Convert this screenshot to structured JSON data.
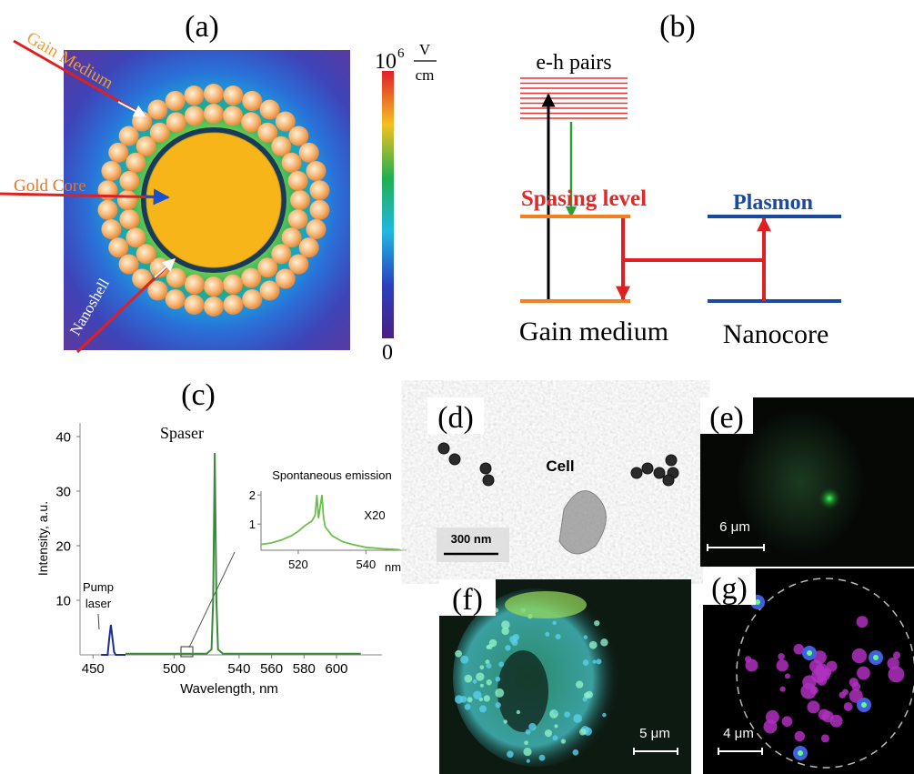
{
  "panel_a": {
    "label": "(a)",
    "gain_medium": "Gain Medium",
    "gold_core": "Gold Core",
    "nanoshell": "Nanoshell",
    "colorbar_top": {
      "base": "10",
      "exponent": "6",
      "unit_num": "V",
      "unit_den": "cm"
    },
    "colorbar_bottom": "0"
  },
  "panel_b": {
    "label": "(b)",
    "eh_pairs": "e-h pairs",
    "spasing_level": "Spasing level",
    "plasmon": "Plasmon",
    "gain_medium": "Gain medium",
    "nanocore": "Nanocore"
  },
  "panel_c": {
    "label": "(c)",
    "chart": {
      "type": "line",
      "xlabel": "Wavelength, nm",
      "ylabel": "Intensity, a.u.",
      "annotations": {
        "spaser": "Spaser",
        "pump": [
          "Pump",
          "laser"
        ]
      },
      "xlim": [
        442,
        628
      ],
      "ylim": [
        0,
        42
      ],
      "xticks": [
        450,
        500,
        540,
        560,
        580,
        600
      ],
      "yticks": [
        10,
        20,
        30,
        40
      ],
      "series": [
        {
          "color": "#1c2f8c",
          "x": [
            455,
            459,
            460,
            461,
            462,
            463,
            464,
            470
          ],
          "values": [
            0,
            0,
            3,
            5.5,
            3,
            0.5,
            0,
            0
          ]
        },
        {
          "color": "#3a8a3a",
          "x": [
            470,
            520,
            523,
            524,
            525,
            526,
            527,
            530,
            615
          ],
          "values": [
            0.2,
            0.2,
            1,
            10,
            37,
            10,
            1,
            0.2,
            0.2
          ]
        }
      ]
    },
    "inset": {
      "type": "line",
      "title": "Spontaneous emission",
      "note": "X20",
      "xunit": "nm",
      "xlim": [
        509,
        552
      ],
      "ylim": [
        0.1,
        2.1
      ],
      "xticks": [
        520,
        540
      ],
      "yticks": [
        1,
        2
      ],
      "series": [
        {
          "color": "#6cbf4a",
          "x": [
            509,
            512,
            515,
            518,
            520,
            522,
            524,
            525,
            525.5,
            526,
            527,
            527.5,
            528,
            530,
            533,
            536,
            540,
            545,
            550
          ],
          "values": [
            0.3,
            0.35,
            0.45,
            0.6,
            0.75,
            0.95,
            1.1,
            1.3,
            2,
            1.2,
            2,
            1.2,
            0.9,
            0.6,
            0.4,
            0.3,
            0.2,
            0.15,
            0.12
          ]
        }
      ]
    }
  },
  "panel_d": {
    "label": "(d)",
    "cell": "Cell",
    "scale": "300 nm"
  },
  "panel_e": {
    "label": "(e)",
    "scale": "6 μm"
  },
  "panel_f": {
    "label": "(f)",
    "scale": "5 μm"
  },
  "panel_g": {
    "label": "(g)",
    "scale": "4 μm"
  }
}
